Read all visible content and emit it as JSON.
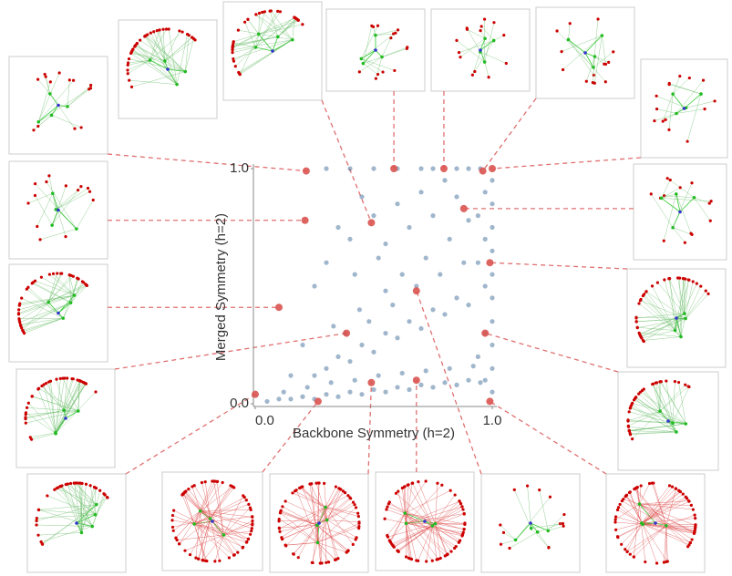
{
  "chart_data": {
    "type": "scatter",
    "x_label": "Backbone Symmetry (h=2)",
    "y_label": "Merged Symmetry (h=2)",
    "xlim": [
      0,
      1
    ],
    "ylim": [
      0,
      1
    ],
    "xticks": [
      {
        "value": 0,
        "label": "0.0"
      },
      {
        "value": 1,
        "label": "1.0"
      }
    ],
    "yticks": [
      {
        "value": 0,
        "label": "0.0"
      },
      {
        "value": 1,
        "label": "1.0"
      }
    ],
    "series": [
      {
        "color": "#2c5d8f",
        "x": [
          0.05,
          0.1,
          0.15,
          0.2,
          0.25,
          0.3,
          0.35,
          0.4,
          0.45,
          0.5,
          0.55,
          0.6,
          0.65,
          0.7,
          0.75,
          0.8,
          0.85,
          0.9,
          0.95,
          0.12,
          0.22,
          0.32,
          0.42,
          0.52,
          0.62,
          0.72,
          0.82,
          0.92,
          0.3,
          0.35,
          0.4,
          0.45,
          0.5,
          0.55,
          0.6,
          0.65,
          0.7,
          0.75,
          0.8,
          0.85,
          0.9,
          0.25,
          0.38,
          0.48,
          0.58,
          0.68,
          0.78,
          0.88,
          0.62,
          0.72,
          0.82,
          0.9,
          0.55,
          0.44,
          0.33,
          0.2,
          0.15,
          0.3,
          0.4,
          0.5,
          0.6,
          0.7,
          0.8,
          0.35,
          0.45,
          0.55,
          0.65,
          0.75,
          0.85,
          0.25,
          0.42,
          0.52,
          0.3,
          0.4,
          0.5,
          0.6,
          0.7,
          0.75,
          0.85,
          0.9,
          0.95,
          1,
          1,
          1,
          1,
          1,
          1,
          1,
          1,
          1,
          1,
          0.97,
          0.97,
          0.97,
          0.97,
          0.97,
          0.94,
          0.94,
          0.94
        ],
        "values": [
          0.01,
          0.02,
          0.02,
          0.03,
          0.02,
          0.04,
          0.03,
          0.05,
          0.04,
          0.06,
          0.05,
          0.07,
          0.06,
          0.08,
          0.07,
          0.09,
          0.08,
          0.1,
          0.09,
          0.05,
          0.07,
          0.09,
          0.1,
          0.12,
          0.13,
          0.14,
          0.15,
          0.16,
          0.15,
          0.2,
          0.18,
          0.25,
          0.22,
          0.3,
          0.28,
          0.35,
          0.32,
          0.4,
          0.38,
          0.45,
          0.42,
          0.12,
          0.3,
          0.35,
          0.42,
          0.5,
          0.55,
          0.6,
          0.55,
          0.62,
          0.7,
          0.78,
          0.48,
          0.4,
          0.33,
          0.25,
          0.12,
          0.6,
          0.7,
          0.8,
          0.85,
          0.9,
          0.95,
          0.75,
          0.88,
          0.68,
          0.75,
          0.8,
          0.88,
          0.5,
          0.55,
          0.62,
          1,
          1,
          1,
          1,
          1,
          1,
          1,
          1,
          1,
          0.05,
          0.15,
          0.25,
          0.35,
          0.45,
          0.55,
          0.65,
          0.75,
          0.85,
          0.95,
          0.1,
          0.3,
          0.5,
          0.7,
          0.9,
          0.2,
          0.6,
          0.8
        ]
      },
      {
        "color": "#d9534f",
        "x": [
          0.215,
          0.585,
          0.796,
          0.96,
          1.0,
          0.21,
          0.49,
          0.88,
          0.99,
          0.1,
          0.68,
          0.385,
          0.97,
          0.0,
          0.265,
          0.49,
          0.68,
          0.99
        ],
        "values": [
          0.99,
          1.0,
          1.0,
          0.99,
          1.0,
          0.78,
          0.77,
          0.83,
          0.6,
          0.41,
          0.48,
          0.3,
          0.3,
          0.04,
          0.01,
          0.09,
          0.1,
          0.01
        ]
      }
    ]
  }
}
